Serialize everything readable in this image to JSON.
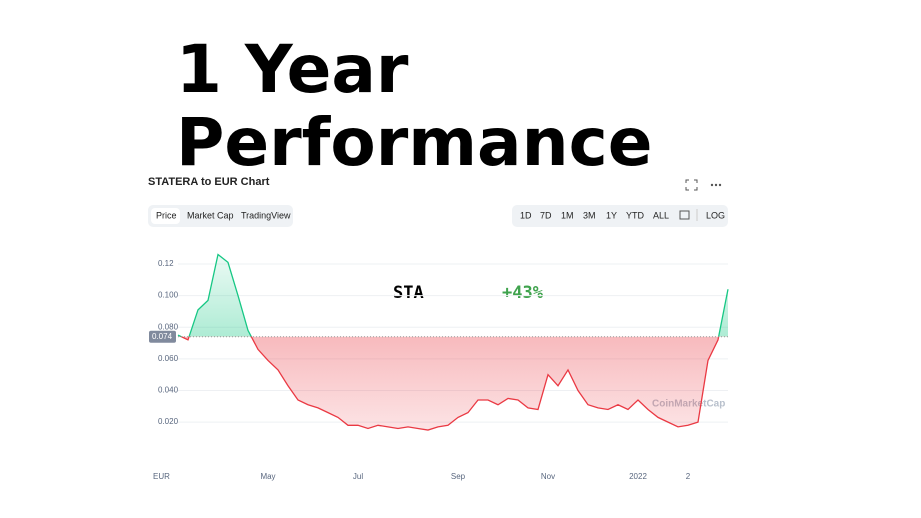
{
  "chart_data": {
    "type": "line",
    "title_lines": [
      "1 Year",
      "Performance"
    ],
    "chart_name": "STATERA to EUR Chart",
    "tabs": [
      "Price",
      "Market Cap",
      "TradingView"
    ],
    "range_buttons": [
      "1D",
      "7D",
      "1M",
      "3M",
      "1Y",
      "YTD",
      "ALL"
    ],
    "scale_button": "LOG",
    "symbol": "STA",
    "change": "+43%",
    "currency": "EUR",
    "watermark": "CoinMarketCap",
    "baseline": 0.074,
    "up_color": "#16c784",
    "down_color": "#ea3943",
    "categories": [
      null,
      null,
      null,
      null,
      null,
      null,
      null,
      null,
      null,
      "May",
      null,
      null,
      null,
      null,
      null,
      null,
      null,
      null,
      "Jul",
      null,
      null,
      null,
      null,
      null,
      null,
      null,
      null,
      null,
      "Sep",
      null,
      null,
      null,
      null,
      null,
      null,
      null,
      null,
      "Nov",
      null,
      null,
      null,
      null,
      null,
      null,
      null,
      null,
      "2022",
      null,
      null,
      null,
      null,
      "2",
      null,
      null,
      null,
      null
    ],
    "values": [
      0.075,
      0.072,
      0.091,
      0.097,
      0.126,
      0.121,
      0.1,
      0.078,
      0.066,
      0.059,
      0.053,
      0.043,
      0.034,
      0.031,
      0.029,
      0.026,
      0.023,
      0.018,
      0.018,
      0.016,
      0.018,
      0.017,
      0.016,
      0.017,
      0.016,
      0.015,
      0.017,
      0.018,
      0.023,
      0.026,
      0.034,
      0.034,
      0.031,
      0.035,
      0.034,
      0.029,
      0.028,
      0.05,
      0.043,
      0.053,
      0.04,
      0.031,
      0.029,
      0.028,
      0.031,
      0.028,
      0.034,
      0.028,
      0.023,
      0.02,
      0.017,
      0.018,
      0.02,
      0.059,
      0.072,
      0.104
    ],
    "ylim": [
      -0.009,
      0.132
    ],
    "yticks": [
      {
        "value": 0.02,
        "label": "0.020"
      },
      {
        "value": 0.04,
        "label": "0.040"
      },
      {
        "value": 0.06,
        "label": "0.060"
      },
      {
        "value": 0.08,
        "label": "0.080"
      },
      {
        "value": 0.1,
        "label": "0.100"
      },
      0.12
    ],
    "grid": true
  }
}
